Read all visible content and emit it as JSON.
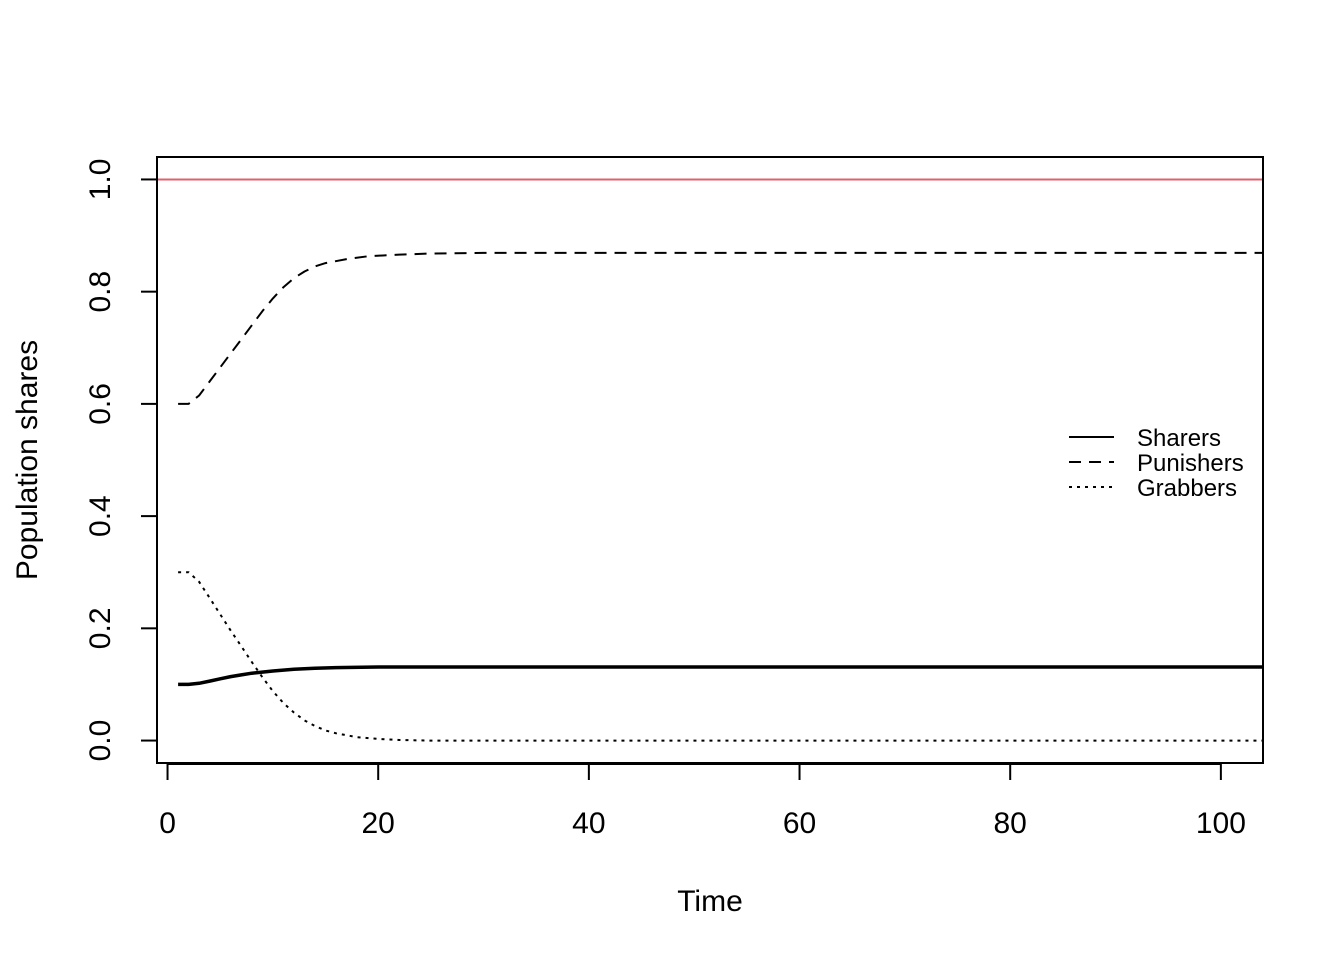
{
  "chart_data": {
    "type": "line",
    "title": "",
    "xlabel": "Time",
    "ylabel": "Population shares",
    "xlim": [
      -1,
      104
    ],
    "ylim": [
      -0.04,
      1.04
    ],
    "x_ticks": [
      "0",
      "20",
      "40",
      "60",
      "80",
      "100"
    ],
    "y_ticks": [
      "0.0",
      "0.2",
      "0.4",
      "0.6",
      "0.8",
      "1.0"
    ],
    "grid": false,
    "legend_position": "right",
    "reference_line": {
      "y": 1.0,
      "color": "#E06070"
    },
    "series": [
      {
        "name": "Sharers",
        "style": "solid",
        "color": "#000000",
        "x": [
          1,
          2,
          3,
          4,
          5,
          6,
          7,
          8,
          9,
          10,
          12,
          14,
          16,
          20,
          25,
          30,
          40,
          60,
          80,
          104
        ],
        "values": [
          0.1,
          0.1,
          0.102,
          0.106,
          0.11,
          0.114,
          0.117,
          0.12,
          0.122,
          0.124,
          0.127,
          0.129,
          0.13,
          0.131,
          0.131,
          0.131,
          0.131,
          0.131,
          0.131,
          0.131
        ]
      },
      {
        "name": "Punishers",
        "style": "dashed",
        "color": "#000000",
        "x": [
          1,
          2,
          3,
          4,
          5,
          6,
          7,
          8,
          9,
          10,
          11,
          12,
          13,
          14,
          15,
          17,
          19,
          22,
          25,
          30,
          40,
          60,
          80,
          104
        ],
        "values": [
          0.6,
          0.6,
          0.615,
          0.64,
          0.665,
          0.69,
          0.715,
          0.74,
          0.765,
          0.788,
          0.808,
          0.824,
          0.836,
          0.845,
          0.851,
          0.858,
          0.863,
          0.866,
          0.868,
          0.869,
          0.869,
          0.869,
          0.869,
          0.869
        ]
      },
      {
        "name": "Grabbers",
        "style": "dotted",
        "color": "#000000",
        "x": [
          1,
          2,
          3,
          4,
          5,
          6,
          7,
          8,
          9,
          10,
          11,
          12,
          13,
          14,
          15,
          16,
          18,
          20,
          22,
          25,
          30,
          40,
          60,
          80,
          104
        ],
        "values": [
          0.3,
          0.3,
          0.283,
          0.254,
          0.225,
          0.196,
          0.168,
          0.14,
          0.113,
          0.088,
          0.067,
          0.05,
          0.036,
          0.026,
          0.018,
          0.013,
          0.006,
          0.003,
          0.001,
          0.0,
          0.0,
          0.0,
          0.0,
          0.0,
          0.0
        ]
      }
    ]
  }
}
